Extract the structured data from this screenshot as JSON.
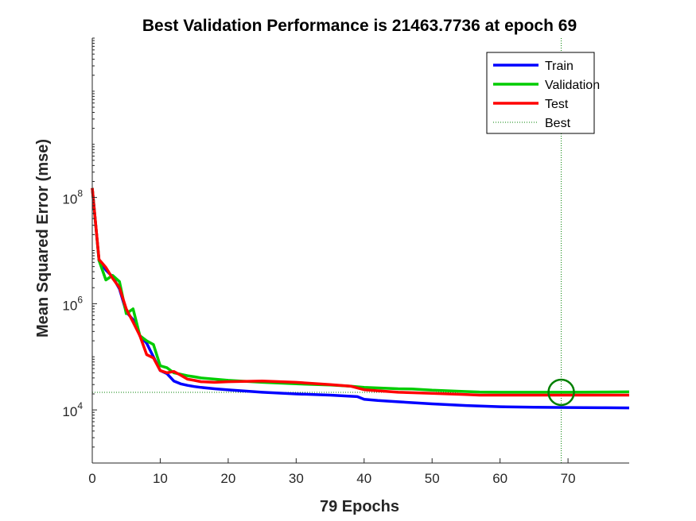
{
  "chart_data": {
    "type": "line",
    "title": "Best Validation Performance is 21463.7736 at epoch 69",
    "xlabel": "79 Epochs",
    "ylabel": "Mean Squared Error  (mse)",
    "xlim": [
      0,
      79
    ],
    "ylim": [
      1000,
      100000000000
    ],
    "yscale": "log",
    "grid": false,
    "legend_position": "top-right",
    "x_ticks": [
      {
        "value": 0,
        "label": "0"
      },
      {
        "value": 10,
        "label": "10"
      },
      {
        "value": 20,
        "label": "20"
      },
      {
        "value": 30,
        "label": "30"
      },
      {
        "value": 40,
        "label": "40"
      },
      {
        "value": 50,
        "label": "50"
      },
      {
        "value": 60,
        "label": "60"
      },
      {
        "value": 70,
        "label": "70"
      }
    ],
    "y_ticks": [
      {
        "value": 10000,
        "base": "10",
        "exp": "4"
      },
      {
        "value": 1000000,
        "base": "10",
        "exp": "6"
      },
      {
        "value": 100000000,
        "base": "10",
        "exp": "8"
      }
    ],
    "series": [
      {
        "name": "Train",
        "color": "#0000ff",
        "x": [
          0,
          1,
          2,
          3,
          4,
          5,
          6,
          7,
          8,
          9,
          10,
          11,
          12,
          13,
          14,
          15,
          16,
          18,
          20,
          25,
          30,
          35,
          39,
          40,
          42,
          45,
          50,
          55,
          60,
          65,
          70,
          75,
          79
        ],
        "y": [
          150000000,
          6500000,
          4300000,
          3200000,
          1900000,
          700000,
          500000,
          250000,
          180000,
          100000,
          55000,
          48000,
          35000,
          31000,
          29000,
          27500,
          26500,
          25000,
          23800,
          21500,
          20000,
          19000,
          17800,
          15800,
          15000,
          14200,
          13000,
          12100,
          11500,
          11200,
          11100,
          11000,
          10900
        ]
      },
      {
        "name": "Validation",
        "color": "#00cc00",
        "x": [
          0,
          1,
          2,
          3,
          4,
          5,
          6,
          7,
          8,
          9,
          10,
          11,
          12,
          13,
          14,
          15,
          16,
          18,
          20,
          25,
          30,
          35,
          38,
          40,
          45,
          47,
          50,
          55,
          57,
          60,
          65,
          69,
          70,
          75,
          79
        ],
        "y": [
          150000000,
          6500000,
          2800000,
          3400000,
          2600000,
          650000,
          800000,
          250000,
          200000,
          170000,
          68000,
          62000,
          50000,
          47000,
          44000,
          42000,
          40000,
          38000,
          36000,
          33000,
          31000,
          29500,
          28000,
          26500,
          25000,
          24800,
          23500,
          22200,
          21700,
          21500,
          21480,
          21463.7736,
          21500,
          21700,
          21900
        ]
      },
      {
        "name": "Test",
        "color": "#ff0000",
        "x": [
          0,
          1,
          2,
          3,
          4,
          5,
          6,
          7,
          8,
          9,
          10,
          11,
          12,
          13,
          14,
          15,
          16,
          18,
          20,
          25,
          30,
          35,
          38,
          40,
          45,
          50,
          55,
          57,
          60,
          65,
          70,
          75,
          79
        ],
        "y": [
          150000000,
          6800000,
          4800000,
          3000000,
          2000000,
          800000,
          450000,
          250000,
          110000,
          95000,
          55000,
          50000,
          53000,
          45000,
          38000,
          36000,
          34000,
          33000,
          34000,
          35000,
          33000,
          30000,
          28000,
          24000,
          21500,
          20500,
          19500,
          19000,
          19000,
          19000,
          19000,
          19000,
          19000
        ]
      },
      {
        "name": "Best",
        "color": "#008000",
        "style": "dotted"
      }
    ],
    "best": {
      "epoch": 69,
      "value": 21463.7736
    }
  }
}
